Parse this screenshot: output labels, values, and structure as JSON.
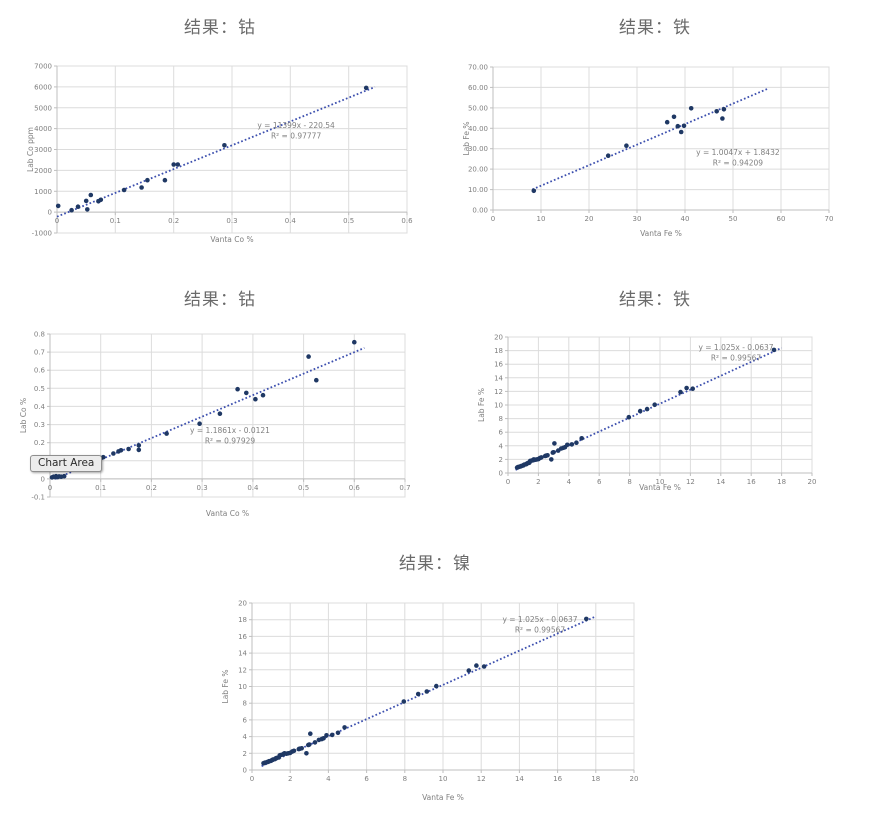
{
  "tooltip": {
    "label": "Chart Area"
  },
  "colors": {
    "marker": "#1f3864",
    "trend": "#3c4fae",
    "grid": "#dcdcdc",
    "axis": "#bfbfbf",
    "tick": "#7f7f7f",
    "eq": "#7f7f7f",
    "title": "#6a6a6a"
  },
  "chart_data": [
    {
      "id": "cobalt-ppm",
      "type": "scatter",
      "title": "结果：钴",
      "xlabel": "Vanta Co %",
      "ylabel": "Lab Co ppm",
      "xlim": [
        0,
        0.6
      ],
      "ylim": [
        -1000,
        7000
      ],
      "xticks": [
        0,
        0.1,
        0.2,
        0.3,
        0.4,
        0.5,
        0.6
      ],
      "xticklabels": [
        "0",
        "0.1",
        "0.2",
        "0.3",
        "0.4",
        "0.5",
        "0.6"
      ],
      "yticks": [
        -1000,
        0,
        1000,
        2000,
        3000,
        4000,
        5000,
        6000,
        7000
      ],
      "yticklabels": [
        "-1000",
        "0",
        "1000",
        "2000",
        "3000",
        "4000",
        "5000",
        "6000",
        "7000"
      ],
      "x_axis_at": 0,
      "legend": "none",
      "grid": true,
      "equation": "y = 11399x - 220.54",
      "r2": "R² = 0.97777",
      "eq_pos": {
        "fx": 0.683,
        "fy": 0.371
      },
      "trendline": {
        "x1": 0.0,
        "y1": -220,
        "x2": 0.545,
        "y2": 5992
      },
      "points": [
        [
          0.002,
          300
        ],
        [
          0.025,
          90
        ],
        [
          0.036,
          260
        ],
        [
          0.05,
          540
        ],
        [
          0.052,
          130
        ],
        [
          0.058,
          820
        ],
        [
          0.071,
          520
        ],
        [
          0.075,
          590
        ],
        [
          0.115,
          1060
        ],
        [
          0.145,
          1180
        ],
        [
          0.155,
          1530
        ],
        [
          0.185,
          1530
        ],
        [
          0.2,
          2280
        ],
        [
          0.207,
          2280
        ],
        [
          0.287,
          3200
        ],
        [
          0.53,
          5950
        ]
      ]
    },
    {
      "id": "iron-high",
      "type": "scatter",
      "title": "结果：铁",
      "xlabel": "Vanta Fe %",
      "ylabel": "Lab Fe %",
      "xlim": [
        0,
        70
      ],
      "ylim": [
        0,
        70
      ],
      "xticks": [
        0,
        10,
        20,
        30,
        40,
        50,
        60,
        70
      ],
      "xticklabels": [
        "0",
        "10",
        "20",
        "30",
        "40",
        "50",
        "60",
        "70"
      ],
      "yticks": [
        0,
        10,
        20,
        30,
        40,
        50,
        60,
        70
      ],
      "yticklabels": [
        "0.00",
        "10.00",
        "20.00",
        "30.00",
        "40.00",
        "50.00",
        "60.00",
        "70.00"
      ],
      "x_axis_at": 0,
      "legend": "none",
      "grid": true,
      "equation": "y = 1.0047x + 1.8432",
      "r2": "R² = 0.94209",
      "eq_pos": {
        "fx": 0.729,
        "fy": 0.615
      },
      "trendline": {
        "x1": 8.2,
        "y1": 10.08,
        "x2": 57.5,
        "y2": 59.6
      },
      "points": [
        [
          8.5,
          9.4
        ],
        [
          24,
          26.6
        ],
        [
          27.8,
          31.5
        ],
        [
          36.3,
          43.0
        ],
        [
          37.7,
          45.6
        ],
        [
          38.5,
          41.0
        ],
        [
          39.2,
          38.2
        ],
        [
          39.8,
          41.2
        ],
        [
          41.3,
          49.8
        ],
        [
          46.6,
          48.3
        ],
        [
          47.8,
          44.8
        ],
        [
          48.1,
          49.3
        ]
      ]
    },
    {
      "id": "cobalt-pct",
      "type": "scatter",
      "title": "结果：钴",
      "xlabel": "Vanta Co %",
      "ylabel": "Lab Co %",
      "xlim": [
        0,
        0.7
      ],
      "ylim": [
        -0.1,
        0.8
      ],
      "xticks": [
        0,
        0.1,
        0.2,
        0.3,
        0.4,
        0.5,
        0.6,
        0.7
      ],
      "xticklabels": [
        "0",
        "0.1",
        "0.2",
        "0.3",
        "0.4",
        "0.5",
        "0.6",
        "0.7"
      ],
      "yticks": [
        -0.1,
        0,
        0.1,
        0.2,
        0.3,
        0.4,
        0.5,
        0.6,
        0.7,
        0.8
      ],
      "yticklabels": [
        "-0.1",
        "0",
        "0.1",
        "0.2",
        "0.3",
        "0.4",
        "0.5",
        "0.6",
        "0.7",
        "0.8"
      ],
      "x_axis_at": 0,
      "legend": "none",
      "grid": true,
      "equation": "y = 1.1861x - 0.0121",
      "r2": "R² = 0.97929",
      "eq_pos": {
        "fx": 0.507,
        "fy": 0.607
      },
      "trendline": {
        "x1": 0.01,
        "y1": -0.0002,
        "x2": 0.62,
        "y2": 0.723
      },
      "points": [
        [
          0.004,
          0.008
        ],
        [
          0.007,
          0.012
        ],
        [
          0.01,
          0.01
        ],
        [
          0.012,
          0.015
        ],
        [
          0.015,
          0.01
        ],
        [
          0.018,
          0.014
        ],
        [
          0.022,
          0.012
        ],
        [
          0.028,
          0.015
        ],
        [
          0.018,
          0.115
        ],
        [
          0.065,
          0.105
        ],
        [
          0.07,
          0.09
        ],
        [
          0.09,
          0.1
        ],
        [
          0.095,
          0.105
        ],
        [
          0.1,
          0.115
        ],
        [
          0.105,
          0.12
        ],
        [
          0.125,
          0.14
        ],
        [
          0.135,
          0.152
        ],
        [
          0.14,
          0.158
        ],
        [
          0.155,
          0.165
        ],
        [
          0.175,
          0.16
        ],
        [
          0.175,
          0.185
        ],
        [
          0.23,
          0.25
        ],
        [
          0.295,
          0.305
        ],
        [
          0.335,
          0.36
        ],
        [
          0.37,
          0.495
        ],
        [
          0.387,
          0.475
        ],
        [
          0.405,
          0.44
        ],
        [
          0.42,
          0.462
        ],
        [
          0.51,
          0.675
        ],
        [
          0.525,
          0.545
        ],
        [
          0.6,
          0.755
        ]
      ]
    },
    {
      "id": "iron-low",
      "type": "scatter",
      "title": "结果：铁",
      "xlabel": "Vanta Fe %",
      "ylabel": "Lab Fe %",
      "xlim": [
        0,
        20
      ],
      "ylim": [
        0,
        20
      ],
      "xticks": [
        0,
        2,
        4,
        6,
        8,
        10,
        12,
        14,
        16,
        18,
        20
      ],
      "xticklabels": [
        "0",
        "2",
        "4",
        "6",
        "8",
        "10",
        "12",
        "14",
        "16",
        "18",
        "20"
      ],
      "yticks": [
        0,
        2,
        4,
        6,
        8,
        10,
        12,
        14,
        16,
        18,
        20
      ],
      "yticklabels": [
        "0",
        "2",
        "4",
        "6",
        "8",
        "10",
        "12",
        "14",
        "16",
        "18",
        "20"
      ],
      "x_axis_at": 0,
      "legend": "none",
      "grid": true,
      "equation": "y = 1.025x - 0.0637",
      "r2": "R² = 0.99567",
      "eq_pos": {
        "fx": 0.75,
        "fy": 0.096
      },
      "trendline": {
        "x1": 0.5,
        "y1": 0.45,
        "x2": 18.0,
        "y2": 18.4
      },
      "points": [
        [
          0.6,
          0.8
        ],
        [
          0.65,
          0.85
        ],
        [
          0.7,
          0.9
        ],
        [
          0.8,
          0.95
        ],
        [
          0.85,
          1.0
        ],
        [
          0.9,
          1.05
        ],
        [
          1.0,
          1.1
        ],
        [
          1.05,
          1.2
        ],
        [
          1.1,
          1.25
        ],
        [
          1.2,
          1.3
        ],
        [
          1.25,
          1.4
        ],
        [
          1.3,
          1.45
        ],
        [
          1.4,
          1.5
        ],
        [
          1.45,
          1.75
        ],
        [
          1.5,
          1.8
        ],
        [
          1.6,
          1.85
        ],
        [
          1.65,
          1.9
        ],
        [
          1.7,
          2.0
        ],
        [
          1.8,
          1.95
        ],
        [
          1.9,
          2.0
        ],
        [
          2.0,
          2.05
        ],
        [
          2.1,
          2.2
        ],
        [
          2.2,
          2.3
        ],
        [
          2.45,
          2.5
        ],
        [
          2.5,
          2.55
        ],
        [
          2.6,
          2.6
        ],
        [
          2.85,
          2.0
        ],
        [
          2.95,
          3.0
        ],
        [
          3.0,
          3.05
        ],
        [
          3.05,
          4.35
        ],
        [
          3.3,
          3.3
        ],
        [
          3.5,
          3.6
        ],
        [
          3.65,
          3.7
        ],
        [
          3.75,
          3.8
        ],
        [
          3.9,
          4.15
        ],
        [
          4.2,
          4.2
        ],
        [
          4.5,
          4.45
        ],
        [
          4.85,
          5.1
        ],
        [
          7.95,
          8.2
        ],
        [
          8.7,
          9.1
        ],
        [
          9.15,
          9.4
        ],
        [
          9.65,
          10.05
        ],
        [
          11.35,
          11.9
        ],
        [
          11.75,
          12.5
        ],
        [
          12.15,
          12.4
        ],
        [
          17.5,
          18.1
        ]
      ]
    },
    {
      "id": "nickel",
      "type": "scatter",
      "title": "结果：镍",
      "xlabel": "Vanta Fe %",
      "ylabel": "Lab Fe %",
      "xlim": [
        0,
        20
      ],
      "ylim": [
        0,
        20
      ],
      "xticks": [
        0,
        2,
        4,
        6,
        8,
        10,
        12,
        14,
        16,
        18,
        20
      ],
      "xticklabels": [
        "0",
        "2",
        "4",
        "6",
        "8",
        "10",
        "12",
        "14",
        "16",
        "18",
        "20"
      ],
      "yticks": [
        0,
        2,
        4,
        6,
        8,
        10,
        12,
        14,
        16,
        18,
        20
      ],
      "yticklabels": [
        "0",
        "2",
        "4",
        "6",
        "8",
        "10",
        "12",
        "14",
        "16",
        "18",
        "20"
      ],
      "x_axis_at": 0,
      "legend": "none",
      "grid": true,
      "equation": "y = 1.025x - 0.0637",
      "r2": "R² = 0.99567",
      "eq_pos": {
        "fx": 0.754,
        "fy": 0.114
      },
      "trendline": {
        "x1": 0.5,
        "y1": 0.45,
        "x2": 18.0,
        "y2": 18.4
      },
      "points": [
        [
          0.6,
          0.8
        ],
        [
          0.65,
          0.85
        ],
        [
          0.7,
          0.9
        ],
        [
          0.8,
          0.95
        ],
        [
          0.85,
          1.0
        ],
        [
          0.9,
          1.05
        ],
        [
          1.0,
          1.1
        ],
        [
          1.05,
          1.2
        ],
        [
          1.1,
          1.25
        ],
        [
          1.2,
          1.3
        ],
        [
          1.25,
          1.4
        ],
        [
          1.3,
          1.45
        ],
        [
          1.4,
          1.5
        ],
        [
          1.45,
          1.75
        ],
        [
          1.5,
          1.8
        ],
        [
          1.6,
          1.85
        ],
        [
          1.65,
          1.9
        ],
        [
          1.7,
          2.0
        ],
        [
          1.8,
          1.95
        ],
        [
          1.9,
          2.0
        ],
        [
          2.0,
          2.05
        ],
        [
          2.1,
          2.2
        ],
        [
          2.2,
          2.3
        ],
        [
          2.45,
          2.5
        ],
        [
          2.5,
          2.55
        ],
        [
          2.6,
          2.6
        ],
        [
          2.85,
          2.0
        ],
        [
          2.95,
          3.0
        ],
        [
          3.0,
          3.05
        ],
        [
          3.05,
          4.35
        ],
        [
          3.3,
          3.3
        ],
        [
          3.5,
          3.6
        ],
        [
          3.65,
          3.7
        ],
        [
          3.75,
          3.8
        ],
        [
          3.9,
          4.15
        ],
        [
          4.2,
          4.2
        ],
        [
          4.5,
          4.45
        ],
        [
          4.85,
          5.1
        ],
        [
          7.95,
          8.2
        ],
        [
          8.7,
          9.1
        ],
        [
          9.15,
          9.4
        ],
        [
          9.65,
          10.05
        ],
        [
          11.35,
          11.9
        ],
        [
          11.75,
          12.5
        ],
        [
          12.15,
          12.4
        ],
        [
          17.5,
          18.1
        ]
      ]
    }
  ]
}
